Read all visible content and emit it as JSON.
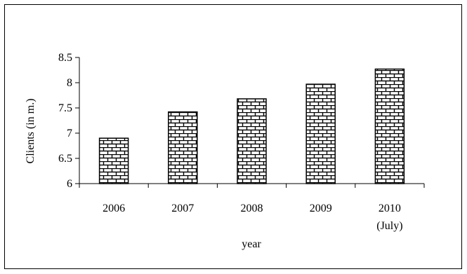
{
  "chart_data": {
    "type": "bar",
    "categories": [
      "2006",
      "2007",
      "2008",
      "2009",
      "2010"
    ],
    "category_sublabels": [
      "",
      "",
      "",
      "",
      "(July)"
    ],
    "values": [
      6.9,
      7.42,
      7.68,
      7.97,
      8.27
    ],
    "title": "",
    "xlabel": "year",
    "ylabel": "Clients (in m.)",
    "ylim": [
      6,
      8.5
    ],
    "yticks": [
      6,
      6.5,
      7,
      7.5,
      8,
      8.5
    ],
    "ytick_labels": [
      "6",
      "6.5",
      "7",
      "7.5",
      "8",
      "8.5"
    ],
    "grid": false,
    "legend": "none",
    "bar_fill": "brick-pattern",
    "colors": {
      "bar_fill": "#ffffff",
      "bar_stroke": "#000000",
      "axis": "#000000"
    }
  }
}
